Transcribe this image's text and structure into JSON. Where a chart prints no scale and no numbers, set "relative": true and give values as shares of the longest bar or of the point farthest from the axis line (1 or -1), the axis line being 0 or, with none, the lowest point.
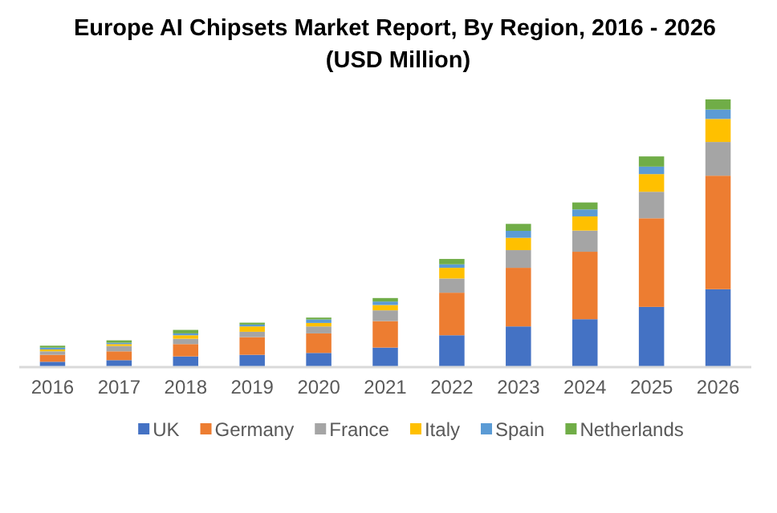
{
  "chart_data": {
    "type": "bar",
    "title": "Europe AI Chipsets Market Report, By Region, 2016 - 2026  (USD Million)",
    "categories": [
      "2016",
      "2017",
      "2018",
      "2019",
      "2020",
      "2021",
      "2022",
      "2023",
      "2024",
      "2025",
      "2026"
    ],
    "stacked": true,
    "relative": true,
    "legend": "bottom",
    "series": [
      {
        "name": "UK",
        "color": "#4472c4",
        "values": [
          0.02,
          0.026,
          0.04,
          0.046,
          0.053,
          0.073,
          0.119,
          0.152,
          0.179,
          0.225,
          0.291
        ]
      },
      {
        "name": "Germany",
        "color": "#ed7d31",
        "values": [
          0.026,
          0.033,
          0.046,
          0.066,
          0.073,
          0.099,
          0.159,
          0.219,
          0.252,
          0.331,
          0.424
        ]
      },
      {
        "name": "France",
        "color": "#a5a5a5",
        "values": [
          0.013,
          0.02,
          0.02,
          0.02,
          0.026,
          0.04,
          0.053,
          0.066,
          0.079,
          0.099,
          0.126
        ]
      },
      {
        "name": "Italy",
        "color": "#ffc000",
        "values": [
          0.007,
          0.007,
          0.013,
          0.02,
          0.013,
          0.02,
          0.04,
          0.046,
          0.053,
          0.066,
          0.086
        ]
      },
      {
        "name": "Spain",
        "color": "#5b9bd5",
        "values": [
          0.007,
          0.005,
          0.007,
          0.007,
          0.013,
          0.013,
          0.013,
          0.026,
          0.026,
          0.028,
          0.035
        ]
      },
      {
        "name": "Netherlands",
        "color": "#70ad47",
        "values": [
          0.007,
          0.009,
          0.013,
          0.007,
          0.007,
          0.013,
          0.02,
          0.026,
          0.026,
          0.038,
          0.038
        ]
      }
    ]
  }
}
